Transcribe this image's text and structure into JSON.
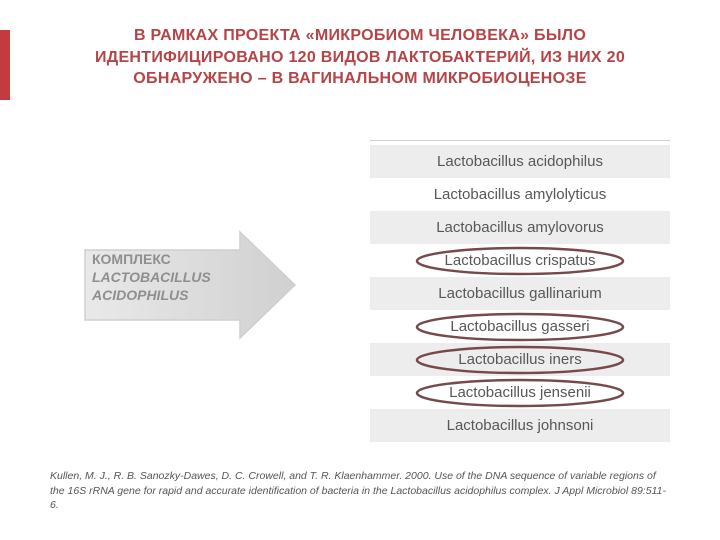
{
  "title": "В РАМКАХ ПРОЕКТА «МИКРОБИОМ ЧЕЛОВЕКА» БЫЛО ИДЕНТИФИЦИРОВАНО 120 ВИДОВ ЛАКТОБАКТЕРИЙ, ИЗ НИХ 20 ОБНАРУЖЕНО – В ВАГИНАЛЬНОМ МИКРОБИОЦЕНОЗЕ",
  "title_color": "#b64447",
  "title_fontsize": 16,
  "accent_bar_color": "#c33b3c",
  "arrow": {
    "line1": "КОМПЛЕКС",
    "line2": "LACTOBACILLUS",
    "line3": "ACIDOPHILUS",
    "label_color": "#8f8f8f",
    "label_fontsize": 14,
    "grad_start": "#e9e9e9",
    "grad_end": "#d0d0d0",
    "stroke": "#cfcfcf"
  },
  "list": {
    "even_bg": "#ededed",
    "odd_bg": "#ffffff",
    "text_color": "#575757",
    "items": [
      "Lactobacillus acidophilus",
      "Lactobacillus amylolyticus",
      "Lactobacillus amylovorus",
      "Lactobacillus crispatus",
      "Lactobacillus gallinarium",
      "Lactobacillus gasseri",
      "Lactobacillus iners",
      "Lactobacillus jensenii",
      "Lactobacillus johnsoni"
    ]
  },
  "circled_indices": [
    3,
    5,
    6,
    7
  ],
  "circle_color": "#78494b",
  "circle_stroke_width": 2.5,
  "citation": "Kullen, M. J., R. B. Sanozky-Dawes, D. C. Crowell, and T. R. Klaenhammer. 2000. Use of the DNA sequence of variable regions of the 16S rRNA gene for rapid and accurate identification of bacteria in the Lactobacillus acidophilus complex. J  Appl  Microbiol 89:511-6."
}
